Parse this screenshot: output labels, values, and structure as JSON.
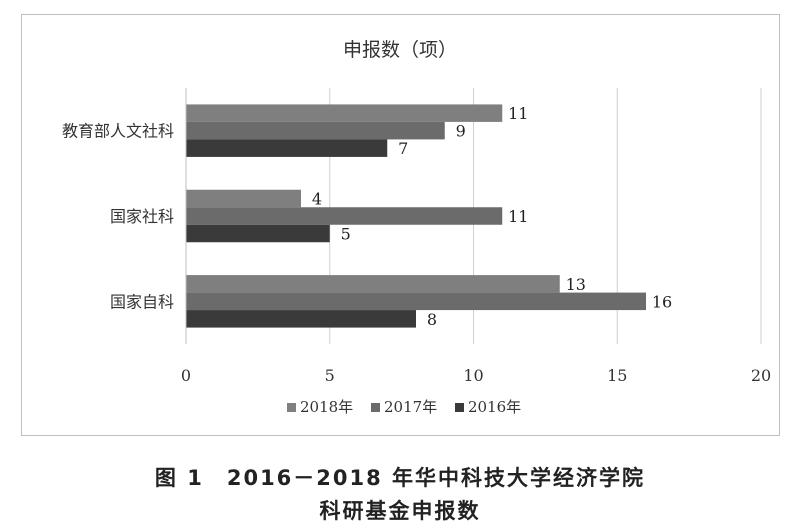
{
  "chart_data": {
    "type": "bar",
    "orientation": "horizontal",
    "title": "申报数（项）",
    "categories": [
      "教育部人文社科",
      "国家社科",
      "国家自科"
    ],
    "series": [
      {
        "name": "2018年",
        "values": [
          11,
          4,
          13
        ],
        "color": "#7f7f7f"
      },
      {
        "name": "2017年",
        "values": [
          9,
          11,
          16
        ],
        "color": "#6b6b6b"
      },
      {
        "name": "2016年",
        "values": [
          7,
          5,
          8
        ],
        "color": "#3a3a3a"
      }
    ],
    "xlim": [
      0,
      20
    ],
    "xticks": [
      "0",
      "5",
      "10",
      "15",
      "20"
    ],
    "grid": true,
    "legend": "bottom"
  },
  "caption": {
    "line1": "图 1　2016－2018 年华中科技大学经济学院",
    "line2": "科研基金申报数"
  }
}
